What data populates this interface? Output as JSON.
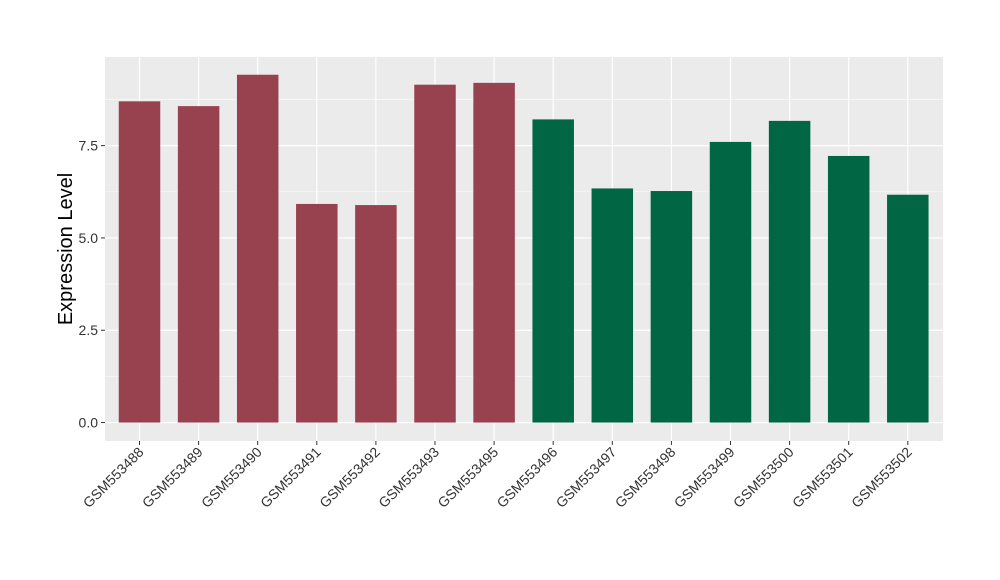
{
  "chart_data": {
    "type": "bar",
    "title": "",
    "xlabel": "",
    "ylabel": "Expression Level",
    "categories": [
      "GSM553488",
      "GSM553489",
      "GSM553490",
      "GSM553491",
      "GSM553492",
      "GSM553493",
      "GSM553495",
      "GSM553496",
      "GSM553497",
      "GSM553498",
      "GSM553499",
      "GSM553500",
      "GSM553501",
      "GSM553502"
    ],
    "values": [
      8.7,
      8.57,
      9.42,
      5.92,
      5.89,
      9.15,
      9.2,
      8.21,
      6.34,
      6.27,
      7.6,
      8.17,
      7.22,
      6.17
    ],
    "groups": [
      "red",
      "red",
      "red",
      "red",
      "red",
      "red",
      "red",
      "green",
      "green",
      "green",
      "green",
      "green",
      "green",
      "green"
    ],
    "group_colors": {
      "red": "#99424F",
      "green": "#006643"
    },
    "ylim": [
      -0.5,
      9.9
    ],
    "yticks": [
      0.0,
      2.5,
      5.0,
      7.5
    ],
    "ytick_labels": [
      "0.0",
      "2.5",
      "5.0",
      "7.5"
    ],
    "grid": true,
    "legend": "none",
    "panel_background": "#EBEBEB"
  }
}
